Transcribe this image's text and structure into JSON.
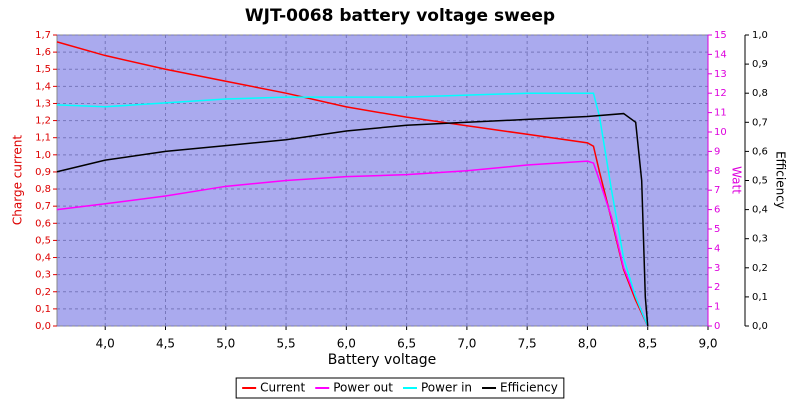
{
  "chart_data": {
    "type": "line",
    "title": "WJT-0068 battery voltage sweep",
    "x_label": "Battery voltage",
    "y_label": "Charge current",
    "y2_label": "Watt",
    "y3_label": "Efficiency",
    "background": "#aaaaee",
    "grid": true,
    "xlim": [
      3.6,
      9.0
    ],
    "xticks": [
      {
        "value": 4.0,
        "label": "4,0"
      },
      {
        "value": 4.5,
        "label": "4,5"
      },
      {
        "value": 5.0,
        "label": "5,0"
      },
      {
        "value": 5.5,
        "label": "5,5"
      },
      {
        "value": 6.0,
        "label": "6,0"
      },
      {
        "value": 6.5,
        "label": "6,5"
      },
      {
        "value": 7.0,
        "label": "7,0"
      },
      {
        "value": 7.5,
        "label": "7,5"
      },
      {
        "value": 8.0,
        "label": "8,0"
      },
      {
        "value": 8.5,
        "label": "8,5"
      },
      {
        "value": 9.0,
        "label": "9,0"
      }
    ],
    "ylim": [
      0,
      1.7
    ],
    "yticks": [
      {
        "value": 0,
        "label": "0,0"
      },
      {
        "value": 0.1,
        "label": "0,1"
      },
      {
        "value": 0.2,
        "label": "0,2"
      },
      {
        "value": 0.3,
        "label": "0,3"
      },
      {
        "value": 0.4,
        "label": "0,4"
      },
      {
        "value": 0.5,
        "label": "0,5"
      },
      {
        "value": 0.6,
        "label": "0,6"
      },
      {
        "value": 0.7,
        "label": "0,7"
      },
      {
        "value": 0.8,
        "label": "0,8"
      },
      {
        "value": 0.9,
        "label": "0,9"
      },
      {
        "value": 1.0,
        "label": "1,0"
      },
      {
        "value": 1.1,
        "label": "1,1"
      },
      {
        "value": 1.2,
        "label": "1,2"
      },
      {
        "value": 1.3,
        "label": "1,3"
      },
      {
        "value": 1.4,
        "label": "1,4"
      },
      {
        "value": 1.5,
        "label": "1,5"
      },
      {
        "value": 1.6,
        "label": "1,6"
      },
      {
        "value": 1.7,
        "label": "1,7"
      }
    ],
    "y2lim": [
      0,
      15
    ],
    "y2ticks": [
      0,
      1,
      2,
      3,
      4,
      5,
      6,
      7,
      8,
      9,
      10,
      11,
      12,
      13,
      14,
      15
    ],
    "y3lim": [
      0,
      1.0
    ],
    "y3ticks": [
      {
        "value": 0,
        "label": "0,0"
      },
      {
        "value": 0.1,
        "label": "0,1"
      },
      {
        "value": 0.2,
        "label": "0,2"
      },
      {
        "value": 0.3,
        "label": "0,3"
      },
      {
        "value": 0.4,
        "label": "0,4"
      },
      {
        "value": 0.5,
        "label": "0,5"
      },
      {
        "value": 0.6,
        "label": "0,6"
      },
      {
        "value": 0.7,
        "label": "0,7"
      },
      {
        "value": 0.8,
        "label": "0,8"
      },
      {
        "value": 0.9,
        "label": "0,9"
      },
      {
        "value": 1.0,
        "label": "1,0"
      }
    ],
    "series": [
      {
        "name": "Current",
        "color": "#ff0000",
        "axis": "y",
        "x": [
          3.6,
          4.0,
          4.5,
          5.0,
          5.5,
          6.0,
          6.5,
          7.0,
          7.5,
          8.0,
          8.05,
          8.1,
          8.2,
          8.3,
          8.4,
          8.5
        ],
        "values": [
          1.66,
          1.58,
          1.5,
          1.43,
          1.36,
          1.28,
          1.22,
          1.17,
          1.12,
          1.07,
          1.05,
          0.9,
          0.62,
          0.33,
          0.15,
          0.0
        ]
      },
      {
        "name": "Power out",
        "color": "#ff00ff",
        "axis": "y2",
        "x": [
          3.6,
          4.0,
          4.5,
          5.0,
          5.5,
          6.0,
          6.5,
          7.0,
          7.5,
          8.0,
          8.05,
          8.1,
          8.2,
          8.3,
          8.4,
          8.5
        ],
        "values": [
          6.0,
          6.3,
          6.7,
          7.2,
          7.5,
          7.7,
          7.8,
          8.0,
          8.3,
          8.5,
          8.4,
          7.5,
          5.6,
          3.0,
          1.5,
          0.0
        ]
      },
      {
        "name": "Power in",
        "color": "#00ffff",
        "axis": "y2",
        "x": [
          3.6,
          4.0,
          4.5,
          5.0,
          5.5,
          6.0,
          6.5,
          7.0,
          7.5,
          8.05,
          8.1,
          8.2,
          8.3,
          8.4,
          8.5
        ],
        "values": [
          11.4,
          11.3,
          11.5,
          11.7,
          11.8,
          11.8,
          11.8,
          11.9,
          12.0,
          12.0,
          10.8,
          7.0,
          3.5,
          1.5,
          0.0
        ]
      },
      {
        "name": "Efficiency",
        "color": "#000000",
        "axis": "y3",
        "x": [
          3.6,
          4.0,
          4.5,
          5.0,
          5.5,
          6.0,
          6.5,
          7.0,
          7.5,
          8.0,
          8.3,
          8.4,
          8.45,
          8.48,
          8.5
        ],
        "values": [
          0.53,
          0.57,
          0.6,
          0.62,
          0.64,
          0.67,
          0.69,
          0.7,
          0.71,
          0.72,
          0.73,
          0.7,
          0.5,
          0.1,
          0.0
        ]
      }
    ]
  }
}
